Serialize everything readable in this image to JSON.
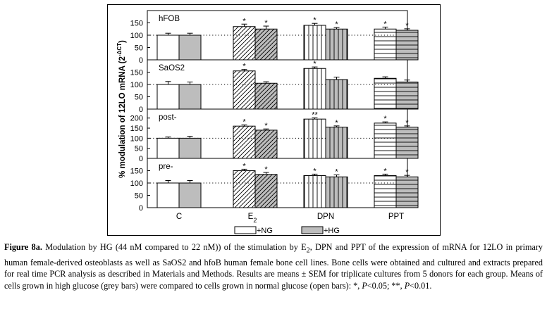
{
  "chart_data": {
    "type": "bar",
    "ylabel": "% modulation of 12LO mRNA (2",
    "ylabel_sup": "-ΔCT",
    "ylabel_close": ")",
    "categories": [
      "C",
      "E",
      "DPN",
      "PPT"
    ],
    "category_subscript": [
      "",
      "2",
      "",
      ""
    ],
    "legend": [
      {
        "label": "+NG",
        "color": "#ffffff"
      },
      {
        "label": "+HG",
        "color": "#bdbdbd"
      }
    ],
    "panels": [
      {
        "name": "hFOB",
        "yticks": [
          0,
          50,
          100,
          150
        ],
        "ylim": [
          0,
          180
        ],
        "ng": [
          100,
          135,
          140,
          125
        ],
        "hg": [
          100,
          125,
          125,
          120
        ],
        "ng_err": [
          8,
          10,
          8,
          8
        ],
        "hg_err": [
          8,
          12,
          6,
          6
        ],
        "ng_mark": [
          "",
          "*",
          "*",
          "*"
        ],
        "hg_mark": [
          "",
          "*",
          "*",
          "*"
        ]
      },
      {
        "name": "SaOS2",
        "yticks": [
          0,
          50,
          100,
          150
        ],
        "ylim": [
          0,
          180
        ],
        "ng": [
          100,
          155,
          165,
          125
        ],
        "hg": [
          100,
          105,
          120,
          110
        ],
        "ng_err": [
          12,
          6,
          6,
          6
        ],
        "hg_err": [
          10,
          6,
          10,
          8
        ],
        "ng_mark": [
          "",
          "*",
          "*",
          ""
        ],
        "hg_mark": [
          "",
          "",
          "",
          ""
        ]
      },
      {
        "name": "post-",
        "yticks": [
          0,
          50,
          100,
          150,
          200
        ],
        "ylim": [
          0,
          220
        ],
        "ng": [
          100,
          160,
          195,
          175
        ],
        "hg": [
          100,
          140,
          155,
          155
        ],
        "ng_err": [
          6,
          6,
          6,
          6
        ],
        "hg_err": [
          10,
          6,
          6,
          6
        ],
        "ng_mark": [
          "",
          "*",
          "**",
          "*"
        ],
        "hg_mark": [
          "",
          "*",
          "*",
          "*"
        ]
      },
      {
        "name": "pre-",
        "yticks": [
          0,
          50,
          100,
          150
        ],
        "ylim": [
          0,
          180
        ],
        "ng": [
          100,
          150,
          130,
          130
        ],
        "hg": [
          100,
          135,
          125,
          125
        ],
        "ng_err": [
          10,
          6,
          6,
          6
        ],
        "hg_err": [
          10,
          8,
          8,
          6
        ],
        "ng_mark": [
          "",
          "*",
          "*",
          "*"
        ],
        "hg_mark": [
          "",
          "*",
          "*",
          "*"
        ]
      }
    ],
    "reference_line": 100,
    "patterns": [
      "none",
      "diagonal",
      "vertical",
      "horizontal"
    ],
    "colors": {
      "ng_fill": "#ffffff",
      "hg_fill": "#bdbdbd",
      "stroke": "#000000"
    }
  },
  "caption": {
    "label": "Figure 8a.",
    "text_part1": " Modulation by HG (44 nM compared to 22 nM)) of the stimulation by E",
    "sub2": "2",
    "text_part2": ", DPN and PPT of the expression of mRNA for 12LO in primary human female-derived osteoblasts as well as SaOS2 and hfoB human female bone cell lines. Bone cells were obtained and cultured and extracts prepared for real time PCR analysis as described in Materials and Methods. Results are means ± SEM for triplicate cultures from 5 donors for each group. Means of cells grown in high glucose (grey bars) were compared to cells grown in normal glucose (open bars): *, ",
    "p1": "P",
    "p1_text": "<0.05; **, ",
    "p2": "P",
    "p2_text": "<0.01."
  }
}
